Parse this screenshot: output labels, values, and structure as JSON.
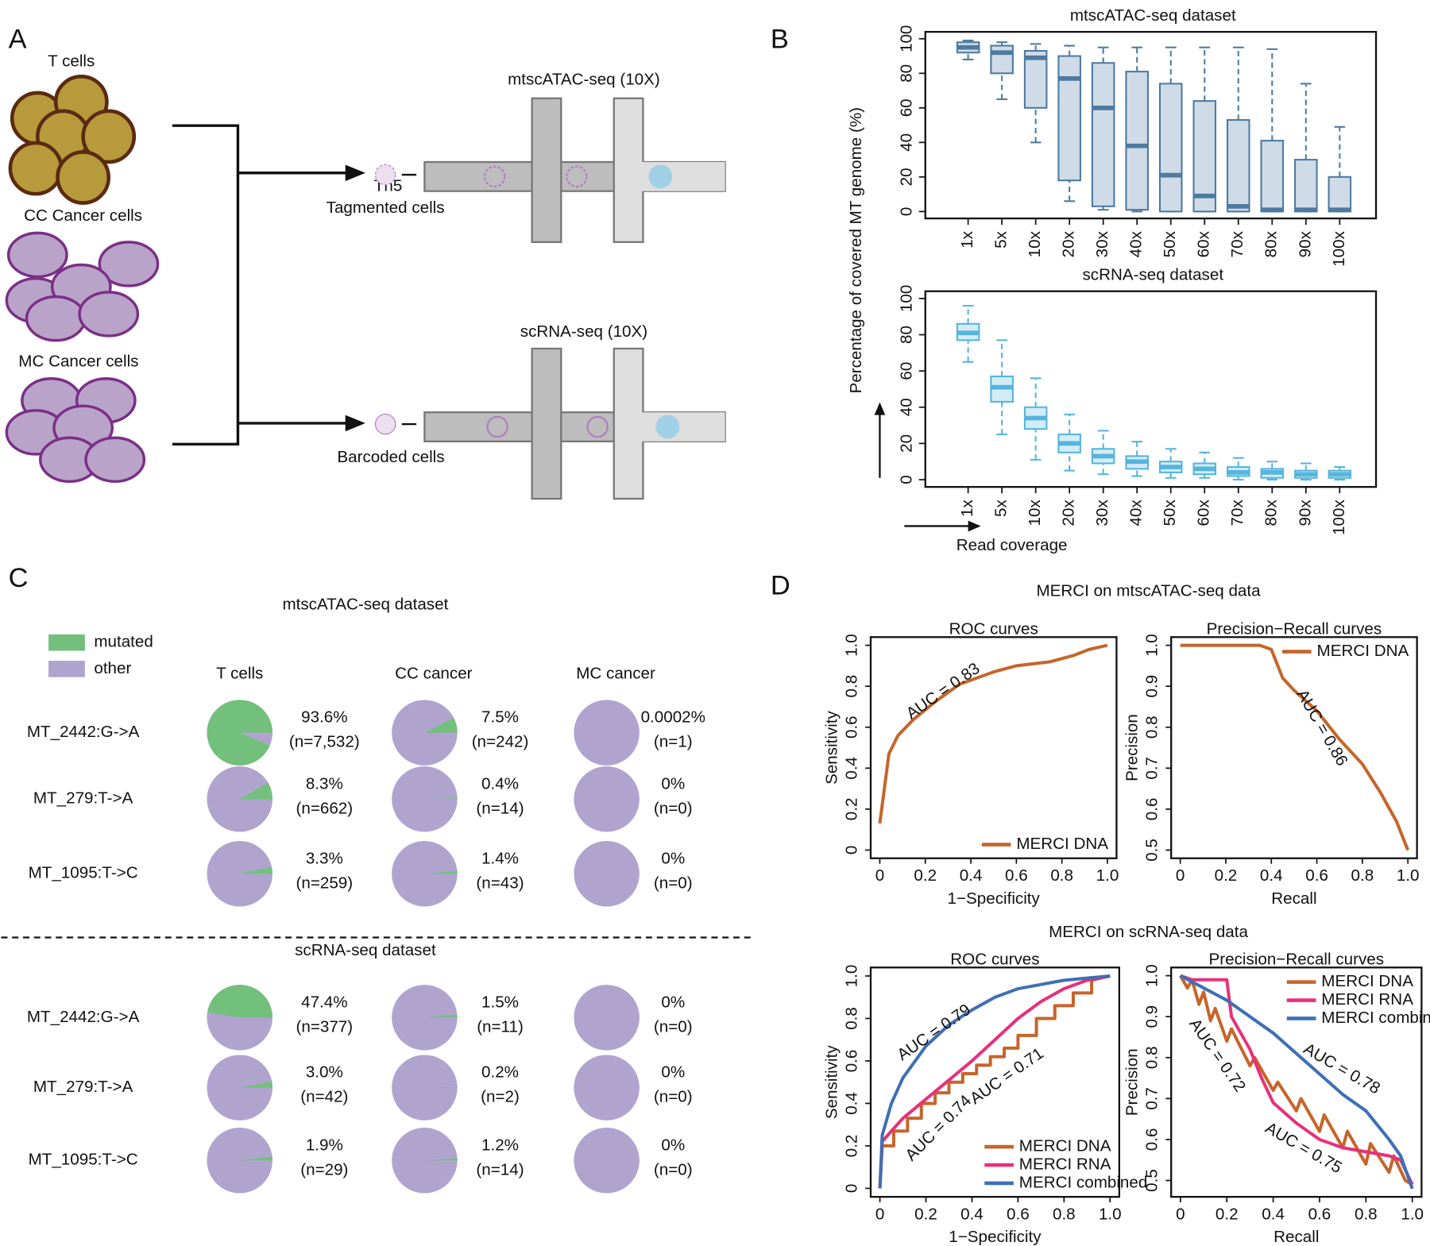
{
  "panel_labels": [
    "A",
    "B",
    "C",
    "D"
  ],
  "diagram": {
    "t_cells": "T cells",
    "cc_cells": "CC Cancer cells",
    "mc_cells": "MC Cancer cells",
    "tn5": "Tn5",
    "tagmented": "Tagmented cells",
    "barcoded": "Barcoded cells",
    "atac_platform": "mtscATAC-seq (10X)",
    "rna_platform": "scRNA-seq (10X)"
  },
  "panel_d_titles": [
    "MERCI on mtscATAC-seq data",
    "MERCI on scRNA-seq data"
  ],
  "chart_data": [
    {
      "type": "box",
      "title": "mtscATAC-seq dataset",
      "ylabel": "Percentage of covered MT genome (%)",
      "color": "#cfdbe6",
      "edge_color": "#4d7aa0",
      "categories": [
        "1x",
        "5x",
        "10x",
        "20x",
        "30x",
        "40x",
        "50x",
        "60x",
        "70x",
        "80x",
        "90x",
        "100x"
      ],
      "stats": {
        "min": [
          88,
          65,
          40,
          6,
          1,
          0,
          0,
          0,
          0,
          0,
          0,
          0
        ],
        "q1": [
          92,
          80,
          60,
          18,
          3,
          1,
          0,
          0,
          0,
          0,
          0,
          0
        ],
        "median": [
          95,
          92,
          89,
          77,
          60,
          38,
          21,
          9,
          3,
          1,
          1,
          1
        ],
        "q3": [
          98,
          96,
          93,
          90,
          86,
          81,
          74,
          64,
          53,
          41,
          30,
          20
        ],
        "max": [
          99,
          98,
          97,
          96,
          95,
          95,
          95,
          95,
          95,
          94,
          74,
          49
        ]
      },
      "ylim": [
        -4,
        104
      ],
      "yticks": [
        0,
        20,
        40,
        60,
        80,
        100
      ]
    },
    {
      "type": "box",
      "title": "scRNA-seq dataset",
      "xlabel": "Read coverage",
      "color": "#d3ecf6",
      "edge_color": "#55b5dd",
      "categories": [
        "1x",
        "5x",
        "10x",
        "20x",
        "30x",
        "40x",
        "50x",
        "60x",
        "70x",
        "80x",
        "90x",
        "100x"
      ],
      "stats": {
        "min": [
          65,
          25,
          11,
          5,
          3,
          2,
          1,
          1,
          0,
          0,
          0,
          0
        ],
        "q1": [
          77,
          43,
          28,
          15,
          9,
          6,
          4,
          3,
          2,
          1,
          1,
          1
        ],
        "median": [
          81,
          51,
          34,
          20,
          13,
          10,
          7,
          6,
          4,
          4,
          3,
          3
        ],
        "q3": [
          86,
          57,
          40,
          25,
          17,
          13,
          10,
          9,
          7,
          6,
          5,
          5
        ],
        "max": [
          96,
          77,
          56,
          36,
          27,
          21,
          17,
          15,
          12,
          10,
          9,
          7
        ]
      },
      "ylim": [
        -4,
        104
      ],
      "yticks": [
        0,
        20,
        40,
        60,
        80,
        100
      ]
    },
    {
      "type": "pie",
      "title": "mtscATAC-seq dataset",
      "series": [
        {
          "name": "mutated",
          "color": "#72c07b"
        },
        {
          "name": "other",
          "color": "#b0a4cf"
        }
      ],
      "columns": [
        "T cells",
        "CC cancer",
        "MC cancer"
      ],
      "rows": [
        "MT_2442:G->A",
        "MT_279:T->A",
        "MT_1095:T->C"
      ],
      "values": [
        [
          93.6,
          7.5,
          0.0002
        ],
        [
          8.3,
          0.4,
          0
        ],
        [
          3.3,
          1.4,
          0
        ]
      ],
      "value_labels": [
        [
          "93.6%",
          "7.5%",
          "0.0002%"
        ],
        [
          "8.3%",
          "0.4%",
          "0%"
        ],
        [
          "3.3%",
          "1.4%",
          "0%"
        ]
      ],
      "counts": [
        [
          7532,
          242,
          1
        ],
        [
          662,
          14,
          0
        ],
        [
          259,
          43,
          0
        ]
      ],
      "count_labels": [
        [
          "(n=7,532)",
          "(n=242)",
          "(n=1)"
        ],
        [
          "(n=662)",
          "(n=14)",
          "(n=0)"
        ],
        [
          "(n=259)",
          "(n=43)",
          "(n=0)"
        ]
      ]
    },
    {
      "type": "pie",
      "title": "scRNA-seq dataset",
      "colors": {
        "mutated": "#72c07b",
        "other": "#b0a4cf"
      },
      "rows": [
        "MT_2442:G->A",
        "MT_279:T->A",
        "MT_1095:T->C"
      ],
      "values": [
        [
          47.4,
          1.5,
          0
        ],
        [
          3.0,
          0.2,
          0
        ],
        [
          1.9,
          1.2,
          0
        ]
      ],
      "value_labels": [
        [
          "47.4%",
          "1.5%",
          "0%"
        ],
        [
          "3.0%",
          "0.2%",
          "0%"
        ],
        [
          "1.9%",
          "1.2%",
          "0%"
        ]
      ],
      "counts": [
        [
          377,
          11,
          0
        ],
        [
          42,
          2,
          0
        ],
        [
          29,
          14,
          0
        ]
      ],
      "count_labels": [
        [
          "(n=377)",
          "(n=11)",
          "(n=0)"
        ],
        [
          "(n=42)",
          "(n=2)",
          "(n=0)"
        ],
        [
          "(n=29)",
          "(n=14)",
          "(n=0)"
        ]
      ]
    },
    {
      "type": "line",
      "title": "ROC curves",
      "xlabel": "1−Specificity",
      "ylabel": "Sensitivity",
      "legend": "lower right",
      "xlim": [
        -0.04,
        1.04
      ],
      "ylim": [
        -0.04,
        1.04
      ],
      "xticks": [
        0,
        0.2,
        0.4,
        0.6,
        0.8,
        {
          "value": 1,
          "label": "1.0"
        }
      ],
      "yticks": [
        0,
        0.2,
        0.4,
        0.6,
        0.8,
        {
          "value": 1,
          "label": "1.0"
        }
      ],
      "series": [
        {
          "name": "MERCI DNA",
          "color": "#c5652b",
          "x": [
            0,
            0.02,
            0.04,
            0.08,
            0.15,
            0.25,
            0.35,
            0.5,
            0.6,
            0.75,
            0.85,
            0.92,
            1
          ],
          "values": [
            0.13,
            0.3,
            0.47,
            0.56,
            0.64,
            0.73,
            0.81,
            0.87,
            0.9,
            0.92,
            0.95,
            0.98,
            1
          ]
        }
      ],
      "annotations": [
        {
          "text": "AUC = 0.83",
          "color": "#c5652b"
        }
      ]
    },
    {
      "type": "line",
      "title": "Precision−Recall curves",
      "xlabel": "Recall",
      "ylabel": "Precision",
      "legend": "upper right",
      "xlim": [
        -0.04,
        1.04
      ],
      "ylim": [
        0.48,
        1.02
      ],
      "xticks": [
        0,
        0.2,
        0.4,
        0.6,
        0.8,
        {
          "value": 1,
          "label": "1.0"
        }
      ],
      "yticks": [
        0.5,
        0.6,
        0.7,
        0.8,
        0.9,
        {
          "value": 1,
          "label": "1.0"
        }
      ],
      "series": [
        {
          "name": "MERCI DNA",
          "color": "#c5652b",
          "x": [
            0,
            0.35,
            0.4,
            0.45,
            0.5,
            0.6,
            0.7,
            0.8,
            0.88,
            0.95,
            1
          ],
          "values": [
            1,
            1,
            0.99,
            0.92,
            0.89,
            0.84,
            0.77,
            0.71,
            0.64,
            0.57,
            0.5
          ]
        }
      ],
      "annotations": [
        {
          "text": "AUC = 0.86",
          "color": "#c5652b"
        }
      ]
    },
    {
      "type": "line",
      "title": "ROC curves",
      "xlabel": "1−Specificity",
      "ylabel": "Sensitivity",
      "legend": "lower right",
      "xlim": [
        -0.04,
        1.04
      ],
      "ylim": [
        -0.04,
        1.04
      ],
      "xticks": [
        0,
        0.2,
        0.4,
        0.6,
        0.8,
        {
          "value": 1,
          "label": "1.0"
        }
      ],
      "yticks": [
        0,
        0.2,
        0.4,
        0.6,
        0.8,
        {
          "value": 1,
          "label": "1.0"
        }
      ],
      "series": [
        {
          "name": "MERCI DNA",
          "color": "#c5652b",
          "x": [
            0,
            0.01,
            0.06,
            0.06,
            0.12,
            0.12,
            0.18,
            0.18,
            0.24,
            0.24,
            0.3,
            0.3,
            0.36,
            0.36,
            0.42,
            0.42,
            0.48,
            0.48,
            0.54,
            0.54,
            0.6,
            0.6,
            0.68,
            0.68,
            0.76,
            0.76,
            0.84,
            0.84,
            0.92,
            0.92,
            1
          ],
          "values": [
            0,
            0.2,
            0.2,
            0.27,
            0.27,
            0.33,
            0.33,
            0.4,
            0.4,
            0.45,
            0.45,
            0.5,
            0.5,
            0.54,
            0.54,
            0.58,
            0.58,
            0.62,
            0.62,
            0.66,
            0.66,
            0.72,
            0.72,
            0.8,
            0.8,
            0.86,
            0.86,
            0.92,
            0.92,
            0.98,
            1
          ]
        },
        {
          "name": "MERCI RNA",
          "color": "#e8307a",
          "x": [
            0,
            0.01,
            0.05,
            0.1,
            0.2,
            0.3,
            0.4,
            0.5,
            0.6,
            0.7,
            0.8,
            0.9,
            1
          ],
          "values": [
            0,
            0.22,
            0.27,
            0.33,
            0.42,
            0.51,
            0.6,
            0.7,
            0.8,
            0.88,
            0.94,
            0.98,
            1
          ]
        },
        {
          "name": "MERCI combined",
          "color": "#3f6fb5",
          "x": [
            0,
            0.01,
            0.05,
            0.1,
            0.2,
            0.3,
            0.4,
            0.5,
            0.6,
            0.7,
            0.8,
            0.9,
            1
          ],
          "values": [
            0,
            0.25,
            0.4,
            0.52,
            0.67,
            0.77,
            0.84,
            0.9,
            0.94,
            0.96,
            0.98,
            0.99,
            1
          ]
        }
      ],
      "annotations": [
        {
          "text": "AUC = 0.79",
          "color": "#3f6fb5"
        },
        {
          "text": "AUC = 0.74",
          "color": "#e8307a"
        },
        {
          "text": "AUC = 0.71",
          "color": "#c5652b"
        }
      ]
    },
    {
      "type": "line",
      "title": "Precision−Recall curves",
      "xlabel": "Recall",
      "ylabel": "Precision",
      "legend": "upper right",
      "xlim": [
        -0.04,
        1.04
      ],
      "ylim": [
        0.46,
        1.02
      ],
      "xticks": [
        0,
        0.2,
        0.4,
        0.6,
        0.8,
        {
          "value": 1,
          "label": "1.0"
        }
      ],
      "yticks": [
        0.5,
        0.6,
        0.7,
        0.8,
        0.9,
        {
          "value": 1,
          "label": "1.0"
        }
      ],
      "series": [
        {
          "name": "MERCI DNA",
          "color": "#c5652b",
          "x": [
            0,
            0.03,
            0.05,
            0.08,
            0.1,
            0.13,
            0.15,
            0.2,
            0.22,
            0.3,
            0.32,
            0.4,
            0.42,
            0.5,
            0.52,
            0.6,
            0.62,
            0.7,
            0.72,
            0.8,
            0.82,
            0.9,
            0.92,
            0.97,
            1
          ],
          "values": [
            1.0,
            0.97,
            0.99,
            0.93,
            0.96,
            0.89,
            0.92,
            0.84,
            0.87,
            0.78,
            0.8,
            0.72,
            0.74,
            0.67,
            0.7,
            0.62,
            0.66,
            0.58,
            0.62,
            0.54,
            0.59,
            0.52,
            0.56,
            0.5,
            0.49
          ]
        },
        {
          "name": "MERCI RNA",
          "color": "#e8307a",
          "x": [
            0,
            0.05,
            0.2,
            0.22,
            0.3,
            0.35,
            0.4,
            0.5,
            0.6,
            0.7,
            0.8,
            0.9,
            0.95,
            1
          ],
          "values": [
            1,
            0.99,
            0.99,
            0.9,
            0.82,
            0.75,
            0.69,
            0.64,
            0.6,
            0.58,
            0.57,
            0.56,
            0.55,
            0.49
          ]
        },
        {
          "name": "MERCI combined",
          "color": "#3f6fb5",
          "x": [
            0,
            0.1,
            0.2,
            0.3,
            0.4,
            0.5,
            0.6,
            0.7,
            0.8,
            0.9,
            0.95,
            1
          ],
          "values": [
            1,
            0.97,
            0.94,
            0.9,
            0.86,
            0.81,
            0.76,
            0.71,
            0.67,
            0.6,
            0.56,
            0.48
          ]
        }
      ],
      "annotations": [
        {
          "text": "AUC = 0.72",
          "color": "#c5652b"
        },
        {
          "text": "AUC = 0.78",
          "color": "#3f6fb5"
        },
        {
          "text": "AUC = 0.75",
          "color": "#e8307a"
        }
      ]
    }
  ]
}
